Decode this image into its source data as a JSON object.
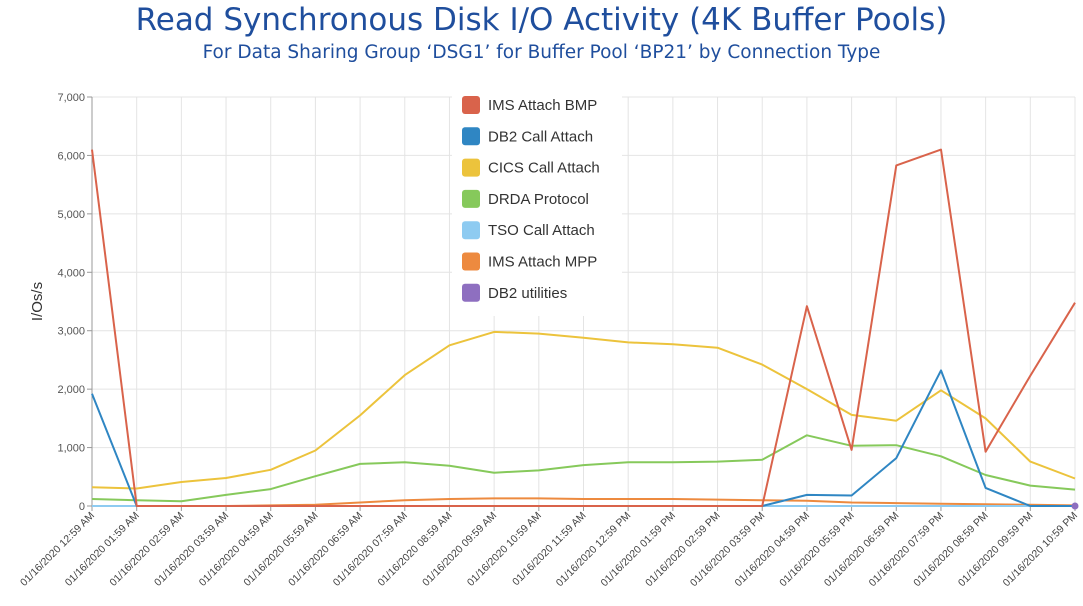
{
  "chart_data": {
    "type": "line",
    "title": "Read Synchronous Disk I/O Activity (4K Buffer Pools)",
    "subtitle": "For Data Sharing Group ‘DSG1’ for Buffer Pool ‘BP21’ by Connection Type",
    "ylabel": "I/Os/s",
    "xlabel": "",
    "ylim": [
      0,
      7000
    ],
    "yticks": [
      "0",
      "1,000",
      "2,000",
      "3,000",
      "4,000",
      "5,000",
      "6,000",
      "7,000"
    ],
    "grid": true,
    "legend_position": "top-center",
    "categories": [
      "01/16/2020 12:59 AM",
      "01/16/2020 01:59 AM",
      "01/16/2020 02:59 AM",
      "01/16/2020 03:59 AM",
      "01/16/2020 04:59 AM",
      "01/16/2020 05:59 AM",
      "01/16/2020 06:59 AM",
      "01/16/2020 07:59 AM",
      "01/16/2020 08:59 AM",
      "01/16/2020 09:59 AM",
      "01/16/2020 10:59 AM",
      "01/16/2020 11:59 AM",
      "01/16/2020 12:59 PM",
      "01/16/2020 01:59 PM",
      "01/16/2020 02:59 PM",
      "01/16/2020 03:59 PM",
      "01/16/2020 04:59 PM",
      "01/16/2020 05:59 PM",
      "01/16/2020 06:59 PM",
      "01/16/2020 07:59 PM",
      "01/16/2020 08:59 PM",
      "01/16/2020 09:59 PM",
      "01/16/2020 10:59 PM"
    ],
    "series": [
      {
        "name": "IMS Attach BMP",
        "color": "#d9634b",
        "values": [
          6100,
          0,
          0,
          0,
          0,
          0,
          0,
          0,
          0,
          0,
          0,
          0,
          0,
          0,
          0,
          0,
          3420,
          960,
          5830,
          6100,
          930,
          2230,
          3480
        ]
      },
      {
        "name": "DB2 Call Attach",
        "color": "#2f86c3",
        "values": [
          1920,
          0,
          0,
          0,
          0,
          0,
          0,
          0,
          0,
          0,
          0,
          0,
          0,
          0,
          0,
          0,
          190,
          180,
          820,
          2320,
          310,
          0,
          0
        ]
      },
      {
        "name": "CICS Call Attach",
        "color": "#ecc33c",
        "values": [
          320,
          300,
          410,
          480,
          620,
          950,
          1550,
          2240,
          2750,
          2980,
          2950,
          2880,
          2800,
          2770,
          2710,
          2420,
          2000,
          1560,
          1460,
          1980,
          1500,
          760,
          470
        ]
      },
      {
        "name": "DRDA Protocol",
        "color": "#86c95b",
        "values": [
          120,
          100,
          80,
          190,
          290,
          510,
          720,
          750,
          690,
          570,
          610,
          700,
          750,
          750,
          760,
          790,
          1210,
          1030,
          1040,
          850,
          530,
          350,
          280
        ]
      },
      {
        "name": "TSO Call Attach",
        "color": "#8ecbf1",
        "values": [
          0,
          0,
          0,
          0,
          0,
          0,
          0,
          0,
          0,
          0,
          0,
          0,
          0,
          0,
          0,
          0,
          0,
          0,
          0,
          0,
          0,
          0,
          0
        ]
      },
      {
        "name": "IMS Attach MPP",
        "color": "#ed8a3f",
        "values": [
          0,
          0,
          0,
          0,
          10,
          20,
          60,
          100,
          120,
          130,
          130,
          120,
          120,
          120,
          110,
          100,
          90,
          60,
          50,
          40,
          30,
          20,
          10
        ]
      },
      {
        "name": "DB2 utilities",
        "color": "#8e6fc0",
        "values": [
          0,
          0,
          0,
          0,
          0,
          0,
          0,
          0,
          0,
          0,
          0,
          0,
          0,
          0,
          0,
          0,
          0,
          0,
          0,
          0,
          0,
          0,
          0
        ]
      }
    ]
  }
}
